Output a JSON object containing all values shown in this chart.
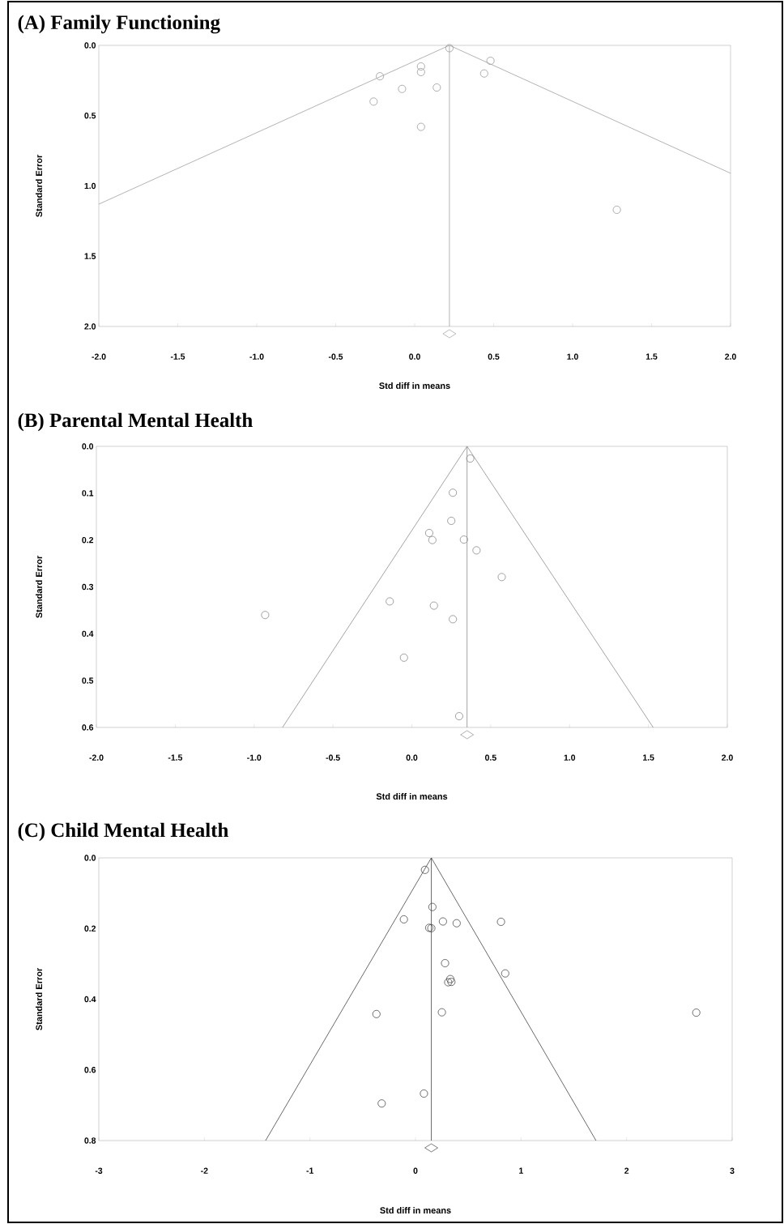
{
  "chart_data": [
    {
      "type": "scatter",
      "title": "(A) Family Functioning",
      "xlabel": "Std diff in means",
      "ylabel": "Standard Error",
      "xlim": [
        -2.0,
        2.0
      ],
      "ylim": [
        2.0,
        0.0
      ],
      "xticks": [
        {
          "value": -2.0,
          "label": "-2.0"
        },
        {
          "value": -1.5,
          "label": "-1.5"
        },
        {
          "value": -1.0,
          "label": "-1.0"
        },
        {
          "value": -0.5,
          "label": "-0.5"
        },
        {
          "value": 0.0,
          "label": "0.0"
        },
        {
          "value": 0.5,
          "label": "0.5"
        },
        {
          "value": 1.0,
          "label": "1.0"
        },
        {
          "value": 1.5,
          "label": "1.5"
        },
        {
          "value": 2.0,
          "label": "2.0"
        }
      ],
      "yticks": [
        {
          "value": 0.0,
          "label": "0.0"
        },
        {
          "value": 0.5,
          "label": "0.5"
        },
        {
          "value": 1.0,
          "label": "1.0"
        },
        {
          "value": 1.5,
          "label": "1.5"
        },
        {
          "value": 2.0,
          "label": "2.0"
        }
      ],
      "series": [
        {
          "type": "scatter",
          "marker": "circle",
          "color": "#8c8c8c",
          "x": [
            0.22,
            0.48,
            0.44,
            0.04,
            0.04,
            -0.22,
            -0.08,
            0.14,
            -0.26,
            0.04,
            1.28
          ],
          "values": [
            0.02,
            0.11,
            0.2,
            0.15,
            0.19,
            0.22,
            0.31,
            0.3,
            0.4,
            0.58,
            1.17
          ]
        },
        {
          "type": "line",
          "marker": "none",
          "color": "#a0a0a0",
          "x": [
            -2.0,
            0.22,
            2.0
          ],
          "values": [
            1.13,
            0.0,
            0.91
          ]
        }
      ],
      "ref_lines": [
        {
          "axis": "x",
          "value": 0.22,
          "color": "#a0a0a0",
          "line_style": "solid"
        }
      ]
    },
    {
      "type": "scatter",
      "title": "(B) Parental Mental Health",
      "xlabel": "Std diff in means",
      "ylabel": "Standard Error",
      "xlim": [
        -2.0,
        2.0
      ],
      "ylim": [
        0.6,
        0.0
      ],
      "xticks": [
        {
          "value": -2.0,
          "label": "-2.0"
        },
        {
          "value": -1.5,
          "label": "-1.5"
        },
        {
          "value": -1.0,
          "label": "-1.0"
        },
        {
          "value": -0.5,
          "label": "-0.5"
        },
        {
          "value": 0.0,
          "label": "0.0"
        },
        {
          "value": 0.5,
          "label": "0.5"
        },
        {
          "value": 1.0,
          "label": "1.0"
        },
        {
          "value": 1.5,
          "label": "1.5"
        },
        {
          "value": 2.0,
          "label": "2.0"
        }
      ],
      "yticks": [
        {
          "value": 0.0,
          "label": "0.0"
        },
        0.1,
        0.2,
        0.3,
        0.4,
        0.5,
        0.6
      ],
      "series": [
        {
          "type": "scatter",
          "marker": "circle",
          "color": "#7a7a7a",
          "x": [
            0.37,
            0.26,
            0.25,
            0.11,
            0.13,
            0.33,
            0.41,
            0.57,
            -0.14,
            0.14,
            0.26,
            -0.93,
            -0.05,
            0.3
          ],
          "values": [
            0.026,
            0.099,
            0.159,
            0.185,
            0.2,
            0.199,
            0.222,
            0.279,
            0.331,
            0.34,
            0.369,
            0.36,
            0.451,
            0.576
          ]
        },
        {
          "type": "line",
          "marker": "none",
          "color": "#8c8c8c",
          "x": [
            -0.82,
            0.35,
            1.53
          ],
          "values": [
            0.6,
            0.0,
            0.6
          ]
        }
      ],
      "ref_lines": [
        {
          "axis": "x",
          "value": 0.35,
          "color": "#8c8c8c",
          "line_style": "solid"
        }
      ]
    },
    {
      "type": "scatter",
      "title": "(C) Child Mental Health",
      "xlabel": "Std diff in means",
      "ylabel": "Standard Error",
      "xlim": [
        -3,
        3
      ],
      "ylim": [
        0.8,
        0.0
      ],
      "xticks": [
        -3,
        -2,
        -1,
        0,
        1,
        2,
        3
      ],
      "yticks": [
        {
          "value": 0.0,
          "label": "0.0"
        },
        0.2,
        0.4,
        0.6,
        0.8
      ],
      "series": [
        {
          "type": "scatter",
          "marker": "circle",
          "color": "#333333",
          "x": [
            0.09,
            0.16,
            -0.11,
            0.26,
            0.39,
            0.81,
            0.13,
            0.15,
            0.28,
            0.85,
            0.33,
            0.31,
            0.34,
            -0.37,
            0.25,
            2.66,
            0.08,
            -0.32
          ],
          "values": [
            0.034,
            0.139,
            0.174,
            0.18,
            0.185,
            0.181,
            0.198,
            0.199,
            0.298,
            0.327,
            0.343,
            0.352,
            0.351,
            0.442,
            0.437,
            0.438,
            0.667,
            0.695
          ]
        },
        {
          "type": "line",
          "marker": "none",
          "color": "#444444",
          "x": [
            -1.42,
            0.15,
            1.71
          ],
          "values": [
            0.8,
            0.0,
            0.8
          ]
        }
      ],
      "ref_lines": [
        {
          "axis": "x",
          "value": 0.15,
          "color": "#444444",
          "line_style": "solid"
        }
      ]
    }
  ]
}
